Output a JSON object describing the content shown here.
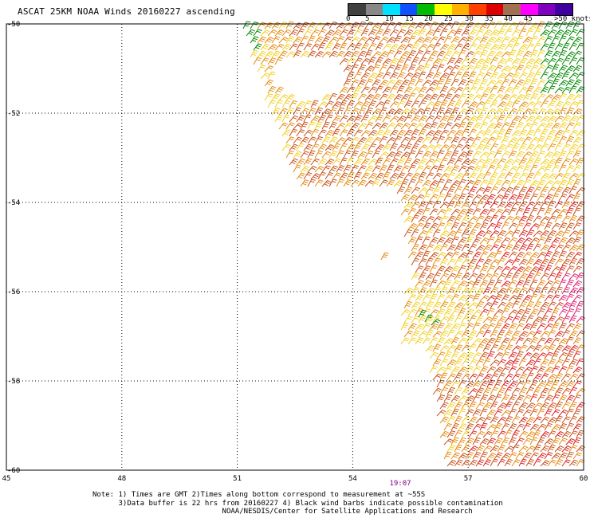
{
  "title": "ASCAT 25KM NOAA Winds 20160227 ascending",
  "scale": {
    "labels": [
      "0",
      "5",
      "10",
      "15",
      "20",
      "25",
      "30",
      "35",
      "40",
      "45",
      ">50 knots"
    ],
    "colors": [
      "#404040",
      "#888888",
      "#00e0ff",
      "#1050ff",
      "#00bb00",
      "#ffff00",
      "#ffb000",
      "#ff4000",
      "#dd0000",
      "#a07050",
      "#ff00ff",
      "#8000c0",
      "#4000a0"
    ]
  },
  "axes": {
    "lon_labels": [
      "45",
      "48",
      "51",
      "54",
      "57",
      "60"
    ],
    "lat_labels": [
      "-50",
      "-52",
      "-54",
      "-56",
      "-58",
      "-60"
    ],
    "lon_range": [
      45,
      60
    ],
    "lat_range": [
      -50,
      -60
    ]
  },
  "pass_time": "19:07",
  "notes": [
    "Note: 1) Times are GMT 2)Times along bottom correspond to measurement at ~55S",
    "      3)Data buffer is 22 hrs from 20160227 4) Black wind barbs indicate possible contamination",
    "                              NOAA/NESDIS/Center for Satellite Applications and Research"
  ],
  "colors": {
    "barb_yellow": "#f2d020",
    "barb_orange": "#e58a10",
    "barb_rust": "#c8501a",
    "barb_red": "#dd2020",
    "barb_green": "#008800",
    "grid": "#000000",
    "time": "#800080"
  }
}
